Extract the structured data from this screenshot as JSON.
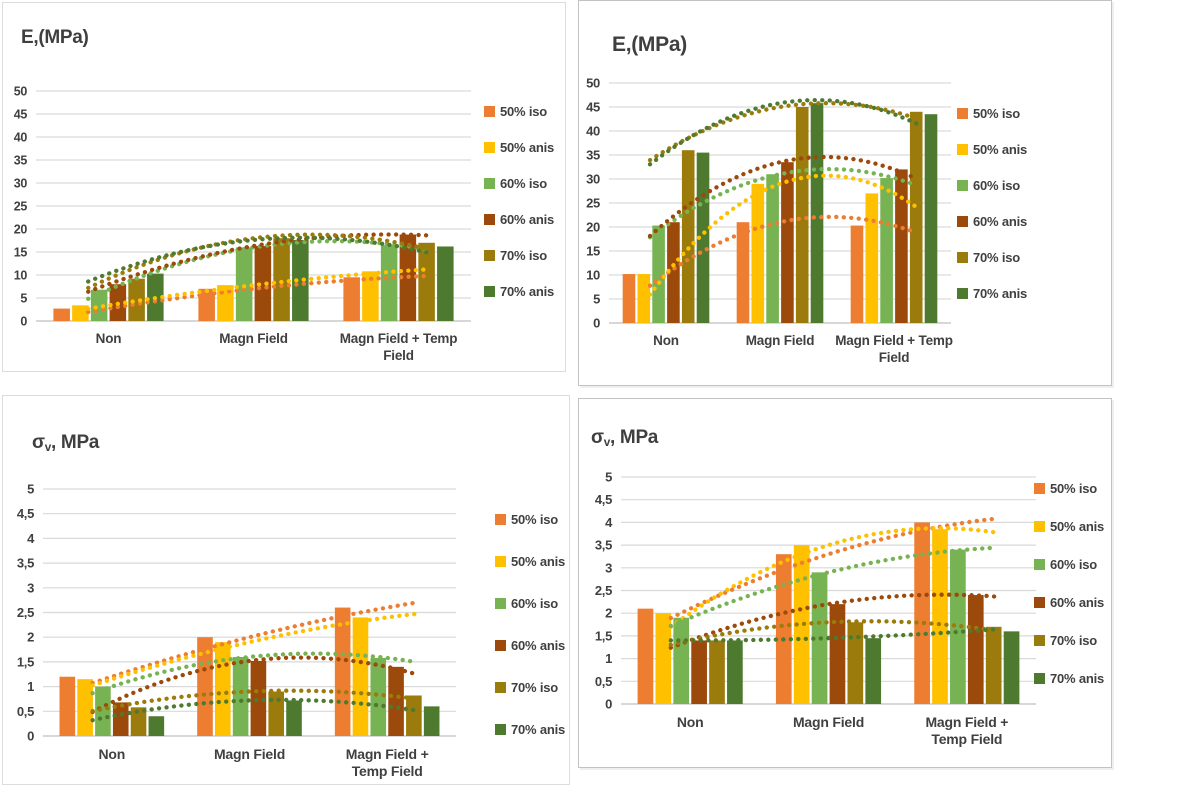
{
  "chart_data": [
    {
      "id": "top_left",
      "type": "bar",
      "title": "E,(MPa)",
      "title_display": {
        "main": "E,(MPa)",
        "sub": "",
        "rest": ""
      },
      "ylabel": "E,(MPa)",
      "xlabel": "",
      "ylim": [
        0,
        50
      ],
      "ystep": 5,
      "grid": true,
      "legend_position": "right",
      "trendline": "polynomial-dotted",
      "y_tick_labels": [
        "0",
        "5",
        "10",
        "15",
        "20",
        "25",
        "30",
        "35",
        "40",
        "45",
        "50"
      ],
      "categories": [
        "Non",
        "Magn Field",
        "Magn Field + Temp Field"
      ],
      "category_label_lines": [
        [
          "Non"
        ],
        [
          "Magn Field"
        ],
        [
          "Magn Field + Temp",
          "Field"
        ]
      ],
      "series": [
        {
          "name": "50% iso",
          "color": "#ED7D31",
          "values": [
            2.7,
            7.0,
            9.5
          ]
        },
        {
          "name": "50% anis",
          "color": "#FFC000",
          "values": [
            3.4,
            7.8,
            10.8
          ]
        },
        {
          "name": "60% iso",
          "color": "#77B353",
          "values": [
            6.8,
            16.0,
            16.5
          ]
        },
        {
          "name": "60% anis",
          "color": "#9C4A0B",
          "values": [
            8.0,
            16.3,
            18.8
          ]
        },
        {
          "name": "70% iso",
          "color": "#9A7B0B",
          "values": [
            9.2,
            18.0,
            17.0
          ]
        },
        {
          "name": "70% anis",
          "color": "#4E7A30",
          "values": [
            10.3,
            17.6,
            16.2
          ]
        }
      ]
    },
    {
      "id": "top_right",
      "type": "bar",
      "title": "E,(MPa)",
      "title_display": {
        "main": "E,(MPa)",
        "sub": "",
        "rest": ""
      },
      "ylabel": "E,(MPa)",
      "xlabel": "",
      "ylim": [
        0,
        50
      ],
      "ystep": 5,
      "grid": true,
      "legend_position": "right",
      "trendline": "polynomial-dotted",
      "y_tick_labels": [
        "0",
        "5",
        "10",
        "15",
        "20",
        "25",
        "30",
        "35",
        "40",
        "45",
        "50"
      ],
      "categories": [
        "Non",
        "Magn Field",
        "Magn Field + Temp Field"
      ],
      "category_label_lines": [
        [
          "Non"
        ],
        [
          "Magn Field"
        ],
        [
          "Magn Field + Temp",
          "Field"
        ]
      ],
      "series": [
        {
          "name": "50% iso",
          "color": "#ED7D31",
          "values": [
            10.2,
            21.0,
            20.3
          ]
        },
        {
          "name": "50% anis",
          "color": "#FFC000",
          "values": [
            10.2,
            29.0,
            27.0
          ]
        },
        {
          "name": "60% iso",
          "color": "#77B353",
          "values": [
            20.3,
            31.0,
            30.2
          ]
        },
        {
          "name": "60% anis",
          "color": "#9C4A0B",
          "values": [
            21.0,
            33.5,
            32.0
          ]
        },
        {
          "name": "70% iso",
          "color": "#9A7B0B",
          "values": [
            36.0,
            45.0,
            44.0
          ]
        },
        {
          "name": "70% anis",
          "color": "#4E7A30",
          "values": [
            35.5,
            45.8,
            43.5
          ]
        }
      ]
    },
    {
      "id": "bottom_left",
      "type": "bar",
      "title": "σv, MPa",
      "title_display": {
        "main": "σ",
        "sub": "v",
        "rest": ", MPa"
      },
      "ylabel": "σv, MPa",
      "xlabel": "",
      "ylim": [
        0,
        5
      ],
      "ystep": 0.5,
      "grid": true,
      "legend_position": "right",
      "trendline": "polynomial-dotted",
      "y_tick_labels": [
        "0",
        "0,5",
        "1",
        "1,5",
        "2",
        "2,5",
        "3",
        "3,5",
        "4",
        "4,5",
        "5"
      ],
      "categories": [
        "Non",
        "Magn Field",
        "Magn Field + Temp Field"
      ],
      "category_label_lines": [
        [
          "Non"
        ],
        [
          "Magn Field"
        ],
        [
          "Magn Field +",
          "Temp Field"
        ]
      ],
      "series": [
        {
          "name": "50% iso",
          "color": "#ED7D31",
          "values": [
            1.2,
            2.0,
            2.6
          ]
        },
        {
          "name": "50% anis",
          "color": "#FFC000",
          "values": [
            1.15,
            1.9,
            2.4
          ]
        },
        {
          "name": "60% iso",
          "color": "#77B353",
          "values": [
            1.0,
            1.6,
            1.58
          ]
        },
        {
          "name": "60% anis",
          "color": "#9C4A0B",
          "values": [
            0.68,
            1.52,
            1.4
          ]
        },
        {
          "name": "70% iso",
          "color": "#9A7B0B",
          "values": [
            0.58,
            0.9,
            0.82
          ]
        },
        {
          "name": "70% anis",
          "color": "#4E7A30",
          "values": [
            0.4,
            0.72,
            0.6
          ]
        }
      ]
    },
    {
      "id": "bottom_right",
      "type": "bar",
      "title": "σv, MPa",
      "title_display": {
        "main": "σ",
        "sub": "v",
        "rest": ", MPa"
      },
      "ylabel": "σv, MPa",
      "xlabel": "",
      "ylim": [
        0,
        5
      ],
      "ystep": 0.5,
      "grid": true,
      "legend_position": "right",
      "trendline": "polynomial-dotted",
      "y_tick_labels": [
        "0",
        "0,5",
        "1",
        "1,5",
        "2",
        "2,5",
        "3",
        "3,5",
        "4",
        "4,5",
        "5"
      ],
      "categories": [
        "Non",
        "Magn Field",
        "Magn Field + Temp Field"
      ],
      "category_label_lines": [
        [
          "Non"
        ],
        [
          "Magn Field"
        ],
        [
          "Magn Field +",
          "Temp Field"
        ]
      ],
      "series": [
        {
          "name": "50% iso",
          "color": "#ED7D31",
          "values": [
            2.1,
            3.3,
            4.0
          ]
        },
        {
          "name": "50% anis",
          "color": "#FFC000",
          "values": [
            2.0,
            3.5,
            3.85
          ]
        },
        {
          "name": "60% iso",
          "color": "#77B353",
          "values": [
            1.9,
            2.9,
            3.4
          ]
        },
        {
          "name": "60% anis",
          "color": "#9C4A0B",
          "values": [
            1.4,
            2.2,
            2.4
          ]
        },
        {
          "name": "70% iso",
          "color": "#9A7B0B",
          "values": [
            1.4,
            1.8,
            1.7
          ]
        },
        {
          "name": "70% anis",
          "color": "#4E7A30",
          "values": [
            1.4,
            1.45,
            1.6
          ]
        }
      ]
    }
  ],
  "style_colors": {
    "text": "#404040",
    "gridline": "#D9D9D9",
    "axis_line": "#BFBFBF"
  }
}
